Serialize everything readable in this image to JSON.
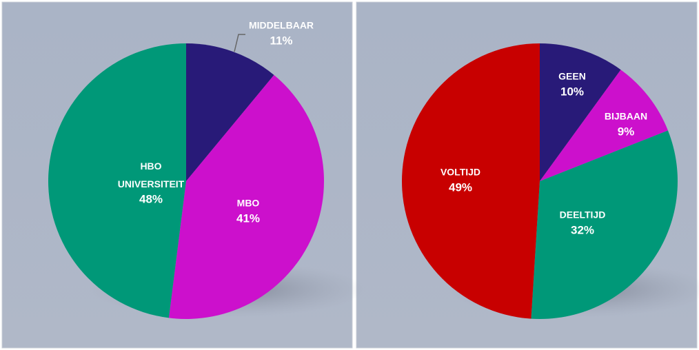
{
  "chart_data": [
    {
      "type": "pie",
      "categories": [
        "MIDDELBAAR",
        "MBO",
        "HBO UNIVERSITEIT"
      ],
      "values": [
        11,
        41,
        48
      ],
      "value_labels": [
        "11%",
        "41%",
        "48%"
      ],
      "colors": [
        "#281a78",
        "#cc10cc",
        "#009878"
      ]
    },
    {
      "type": "pie",
      "categories": [
        "GEEN",
        "BIJBAAN",
        "DEELTIJD",
        "VOLTIJD"
      ],
      "values": [
        10,
        9,
        32,
        49
      ],
      "value_labels": [
        "10%",
        "9%",
        "32%",
        "49%"
      ],
      "colors": [
        "#281a78",
        "#cc10cc",
        "#009878",
        "#c80000"
      ]
    }
  ]
}
